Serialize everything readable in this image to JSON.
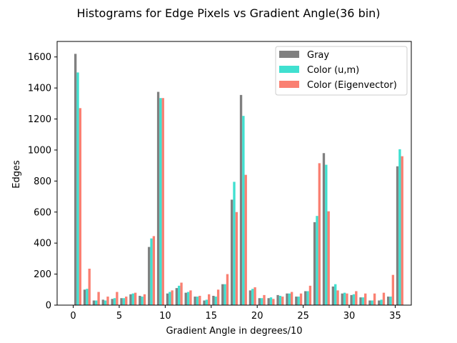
{
  "chart_data": {
    "type": "bar",
    "title": "Histograms for Edge Pixels vs Gradient Angle(36 bin)",
    "xlabel": "Gradient Angle in degrees/10",
    "ylabel": "Edges",
    "x": [
      0,
      1,
      2,
      3,
      4,
      5,
      6,
      7,
      8,
      9,
      10,
      11,
      12,
      13,
      14,
      15,
      16,
      17,
      18,
      19,
      20,
      21,
      22,
      23,
      24,
      25,
      26,
      27,
      28,
      29,
      30,
      31,
      32,
      33,
      34,
      35
    ],
    "xlim": [
      -1.75,
      36.75
    ],
    "ylim": [
      0,
      1700
    ],
    "xticks": [
      0,
      5,
      10,
      15,
      20,
      25,
      30,
      35
    ],
    "yticks": [
      0,
      200,
      400,
      600,
      800,
      1000,
      1200,
      1400,
      1600
    ],
    "legend_position": "top-right",
    "grid": false,
    "series": [
      {
        "name": "Gray",
        "color": "#808080",
        "values": [
          1620,
          100,
          30,
          35,
          40,
          45,
          70,
          60,
          375,
          1375,
          75,
          110,
          80,
          55,
          30,
          60,
          135,
          680,
          1355,
          95,
          45,
          45,
          65,
          75,
          55,
          90,
          535,
          980,
          120,
          75,
          65,
          50,
          30,
          30,
          55,
          895
        ]
      },
      {
        "name": "Color (u,m)",
        "color": "#40e0d0",
        "values": [
          1500,
          105,
          30,
          30,
          45,
          45,
          75,
          55,
          430,
          1335,
          85,
          125,
          85,
          55,
          35,
          55,
          135,
          795,
          1220,
          105,
          45,
          50,
          60,
          75,
          55,
          90,
          575,
          905,
          135,
          80,
          70,
          50,
          30,
          35,
          55,
          1005
        ]
      },
      {
        "name": "Color (Eigenvector)",
        "color": "#fa8072",
        "values": [
          1270,
          235,
          85,
          55,
          85,
          55,
          80,
          70,
          445,
          1335,
          95,
          145,
          95,
          60,
          70,
          100,
          200,
          600,
          840,
          115,
          65,
          40,
          55,
          85,
          75,
          125,
          915,
          605,
          95,
          75,
          90,
          75,
          75,
          80,
          195,
          960
        ]
      }
    ]
  }
}
